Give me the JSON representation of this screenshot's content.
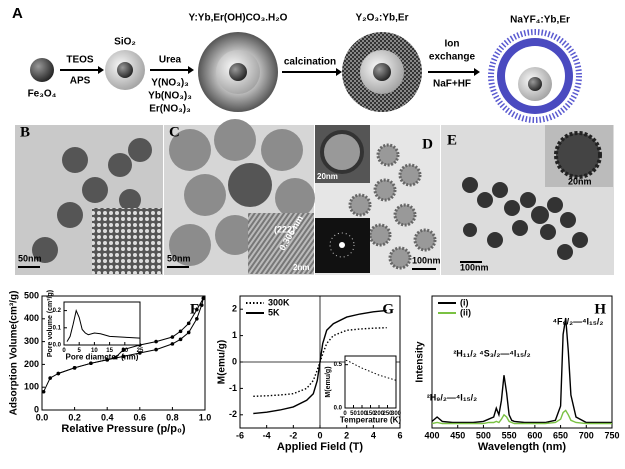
{
  "scheme": {
    "label": "A",
    "start": "Fe₃O₄",
    "step1_top": "TEOS",
    "step1_bottom": "APS",
    "sio2": "SiO₂",
    "step2_top": "Urea",
    "step2_reagents": [
      "Y(NO₃)₃",
      "Yb(NO₃)₃",
      "Er(NO₃)₃"
    ],
    "product1": "Y:Yb,Er(OH)CO₃.H₂O",
    "step3": "calcination",
    "product2": "Y₂O₃:Yb,Er",
    "step4_top": [
      "Ion",
      "exchange"
    ],
    "step4_bottom": "NaF+HF",
    "product3": "NaYF₄:Yb,Er"
  },
  "micrographs": {
    "B": {
      "label": "B",
      "scale": "50nm"
    },
    "C": {
      "label": "C",
      "scale": "50nm",
      "hrtem_scale": "2nm",
      "plane": "(222)",
      "spacing": "0.306 nm"
    },
    "D": {
      "label": "D",
      "scale": "100nm",
      "inset_scale": "20nm"
    },
    "E": {
      "label": "E",
      "scale": "100nm",
      "inset_scale": "20nm"
    }
  },
  "chart_data": [
    {
      "type": "line",
      "panel_label": "F",
      "xlabel": "Relative Pressure (p/p₀)",
      "ylabel": "Adsorption Volume(cm³/g)",
      "xlim": [
        0,
        1
      ],
      "xticks": [
        {
          "value": 0,
          "label": "0.0"
        },
        {
          "value": 0.2,
          "label": "0.2"
        },
        {
          "value": 0.4,
          "label": "0.4"
        },
        {
          "value": 0.6,
          "label": "0.6"
        },
        {
          "value": 0.8,
          "label": "0.8"
        },
        {
          "value": 1,
          "label": "1.0"
        }
      ],
      "ylim": [
        0,
        500
      ],
      "yticks": [
        0,
        100,
        200,
        300,
        400,
        500
      ],
      "series": [
        {
          "color": "#000000",
          "marker": "circle",
          "x": [
            0.01,
            0.05,
            0.1,
            0.2,
            0.3,
            0.4,
            0.5,
            0.6,
            0.7,
            0.8,
            0.85,
            0.9,
            0.95,
            0.98,
            0.99
          ],
          "values": [
            80,
            140,
            160,
            185,
            205,
            220,
            235,
            250,
            265,
            290,
            310,
            340,
            400,
            460,
            490
          ]
        },
        {
          "color": "#000000",
          "marker": "circle",
          "x": [
            0.99,
            0.95,
            0.9,
            0.85,
            0.8,
            0.7,
            0.6,
            0.5,
            0.45,
            0.4,
            0.3,
            0.2,
            0.1
          ],
          "values": [
            490,
            440,
            380,
            345,
            320,
            300,
            285,
            265,
            230,
            220,
            205,
            185,
            160
          ]
        }
      ],
      "inset": {
        "xlabel": "Pore diameter (nm)",
        "ylabel": "Pore volume (cm³/g)",
        "xlim": [
          0,
          25
        ],
        "xticks": [
          0,
          5,
          10,
          15,
          20,
          25
        ],
        "ylim": [
          0,
          0.25
        ],
        "yticks": [
          {
            "value": 0,
            "label": "0.0"
          },
          0.1,
          0.2
        ],
        "series": [
          {
            "color": "#000000",
            "x": [
              1,
              2,
              3,
              4,
              5,
              6,
              7,
              8,
              10,
              12,
              15,
              20,
              25
            ],
            "values": [
              0.02,
              0.05,
              0.12,
              0.2,
              0.16,
              0.09,
              0.07,
              0.06,
              0.07,
              0.065,
              0.05,
              0.045,
              0.04
            ]
          }
        ]
      }
    },
    {
      "type": "line",
      "panel_label": "G",
      "xlabel": "Applied Field (T)",
      "ylabel": "M(emu/g)",
      "zero_lines": true,
      "legend": "upper left",
      "xlim": [
        -6,
        6
      ],
      "xticks": [
        -6,
        -4,
        -2,
        0,
        2,
        4,
        6
      ],
      "ylim": [
        -2.5,
        2.5
      ],
      "yticks": [
        -2,
        -1,
        0,
        1,
        2
      ],
      "x": [
        -5,
        -4,
        -3,
        -2,
        -1,
        -0.5,
        -0.2,
        0,
        0.2,
        0.5,
        1,
        2,
        3,
        4,
        5
      ],
      "series": [
        {
          "name": "300K",
          "color": "#000000",
          "line_style": "dotted",
          "values": [
            -1.3,
            -1.28,
            -1.25,
            -1.2,
            -1.0,
            -0.7,
            -0.3,
            0,
            0.3,
            0.7,
            1.0,
            1.2,
            1.25,
            1.28,
            1.3
          ]
        },
        {
          "name": "5K",
          "color": "#000000",
          "line_style": "solid",
          "values": [
            -1.95,
            -1.9,
            -1.82,
            -1.7,
            -1.45,
            -1.2,
            -0.7,
            0,
            0.7,
            1.2,
            1.45,
            1.7,
            1.82,
            1.9,
            1.95
          ]
        }
      ],
      "inset": {
        "xlabel": "Temperature (K)",
        "ylabel": "M(emu/g)",
        "xlim": [
          0,
          300
        ],
        "xticks": [
          0,
          50,
          100,
          150,
          200,
          250,
          300
        ],
        "ylim": [
          0,
          0.6
        ],
        "yticks": [
          {
            "value": 0,
            "label": "0.0"
          },
          0.5
        ],
        "series": [
          {
            "color": "#000000",
            "line_style": "dotted",
            "x": [
              5,
              20,
              40,
              60,
              80,
              100,
              150,
              200,
              250,
              300
            ],
            "values": [
              0.55,
              0.54,
              0.52,
              0.5,
              0.48,
              0.46,
              0.42,
              0.38,
              0.35,
              0.32
            ]
          }
        ]
      }
    },
    {
      "type": "line",
      "panel_label": "H",
      "xlabel": "Wavelength (nm)",
      "ylabel": "Intensity",
      "legend": "upper left",
      "xlim": [
        400,
        750
      ],
      "xticks": [
        400,
        450,
        500,
        550,
        600,
        650,
        700,
        750
      ],
      "ylim": [
        0,
        1.2
      ],
      "annotations": [
        "⁴F₉/₂—⁴I₁₅/₂",
        "²H₁₁/₂ ⁴S₃/₂—⁴I₁₅/₂",
        "²H₉/₂—⁴I₁₅/₂"
      ],
      "x": [
        400,
        410,
        420,
        440,
        460,
        480,
        500,
        510,
        520,
        525,
        530,
        535,
        540,
        545,
        550,
        555,
        560,
        580,
        600,
        620,
        640,
        650,
        655,
        660,
        665,
        670,
        680,
        700,
        720,
        740,
        750
      ],
      "series": [
        {
          "name": "(i)",
          "color": "#000000",
          "values": [
            0.06,
            0.1,
            0.06,
            0.05,
            0.05,
            0.05,
            0.06,
            0.08,
            0.1,
            0.18,
            0.12,
            0.25,
            0.48,
            0.32,
            0.12,
            0.07,
            0.06,
            0.05,
            0.05,
            0.05,
            0.07,
            0.2,
            0.85,
            1.0,
            0.7,
            0.3,
            0.1,
            0.05,
            0.05,
            0.05,
            0.05
          ]
        },
        {
          "name": "(ii)",
          "color": "#7ac143",
          "values": [
            0.04,
            0.05,
            0.04,
            0.04,
            0.04,
            0.04,
            0.04,
            0.05,
            0.05,
            0.06,
            0.05,
            0.08,
            0.12,
            0.1,
            0.06,
            0.05,
            0.04,
            0.04,
            0.04,
            0.04,
            0.05,
            0.08,
            0.14,
            0.16,
            0.12,
            0.07,
            0.05,
            0.04,
            0.04,
            0.04,
            0.04
          ]
        }
      ]
    }
  ]
}
